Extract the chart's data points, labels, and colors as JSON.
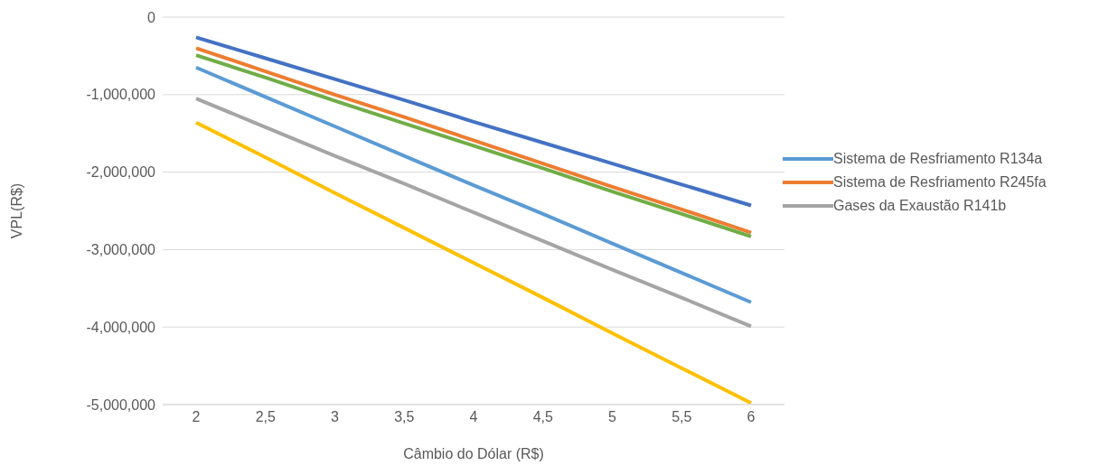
{
  "chart_data": {
    "type": "line",
    "xlabel": "Câmbio do Dólar (R$)",
    "ylabel": "VPL(R$)",
    "categories": [
      "2",
      "2,5",
      "3",
      "3,5",
      "4",
      "4,5",
      "5",
      "5,5",
      "6"
    ],
    "series": [
      {
        "name": "Sistema de Resfriamento R134a",
        "color": "#5b9bd5",
        "values": [
          -650000,
          -1030000,
          -1410000,
          -1790000,
          -2170000,
          -2540000,
          -2920000,
          -3300000,
          -3680000
        ]
      },
      {
        "name": "Sistema de Resfriamento R245fa",
        "color": "#ed7d31",
        "values": [
          -400000,
          -700000,
          -1000000,
          -1290000,
          -1590000,
          -1890000,
          -2190000,
          -2480000,
          -2780000
        ]
      },
      {
        "name": "Gases da Exaustão R141b",
        "color": "#a5a5a5",
        "values": [
          -1050000,
          -1420000,
          -1790000,
          -2150000,
          -2520000,
          -2890000,
          -3260000,
          -3620000,
          -3990000
        ]
      },
      {
        "color": "#ffc000",
        "values": [
          -1360000,
          -1810000,
          -2270000,
          -2720000,
          -3170000,
          -3620000,
          -4080000,
          -4530000,
          -4980000
        ]
      },
      {
        "color": "#4472c4",
        "values": [
          -260000,
          -530000,
          -800000,
          -1070000,
          -1350000,
          -1620000,
          -1890000,
          -2160000,
          -2430000
        ]
      },
      {
        "color": "#70ad47",
        "values": [
          -490000,
          -780000,
          -1080000,
          -1370000,
          -1660000,
          -1950000,
          -2250000,
          -2540000,
          -2830000
        ]
      }
    ],
    "ylim": [
      -5000000,
      0
    ],
    "yticks": [
      {
        "value": -5000000,
        "label": "-5,000,000"
      },
      {
        "value": -4000000,
        "label": "-4,000,000"
      },
      {
        "value": -3000000,
        "label": "-3,000,000"
      },
      {
        "value": -2000000,
        "label": "-2,000,000"
      },
      {
        "value": -1000000,
        "label": "-1,000,000"
      },
      0
    ],
    "grid": "y",
    "legend": "right",
    "marker": "none"
  }
}
